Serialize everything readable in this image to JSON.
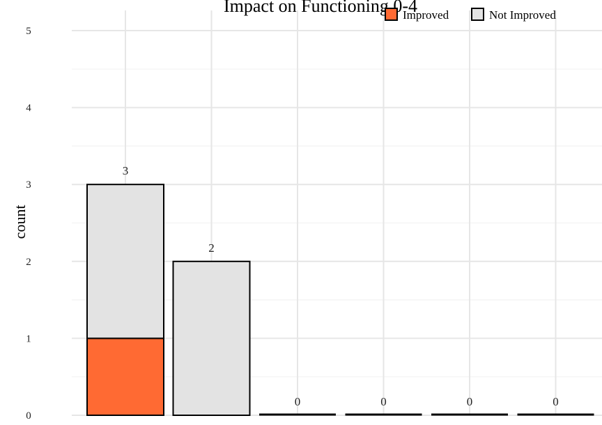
{
  "chart_data": {
    "type": "bar",
    "stacked": true,
    "title": "Impact on Functioning 0-4",
    "xlabel": "",
    "ylabel": "count",
    "ylim": [
      0,
      5
    ],
    "yticks": [
      0,
      1,
      2,
      3,
      4,
      5
    ],
    "grid": true,
    "legend_position": "top-right",
    "categories": [
      "",
      "",
      "",
      "",
      "",
      ""
    ],
    "series": [
      {
        "name": "Improved",
        "values": [
          1,
          0,
          0,
          0,
          0,
          0
        ],
        "color": "#FF6A33"
      },
      {
        "name": "Not Improved",
        "values": [
          2,
          2,
          0,
          0,
          0,
          0
        ],
        "color": "#E3E3E3"
      }
    ],
    "totals": [
      3,
      2,
      0,
      0,
      0,
      0
    ]
  }
}
